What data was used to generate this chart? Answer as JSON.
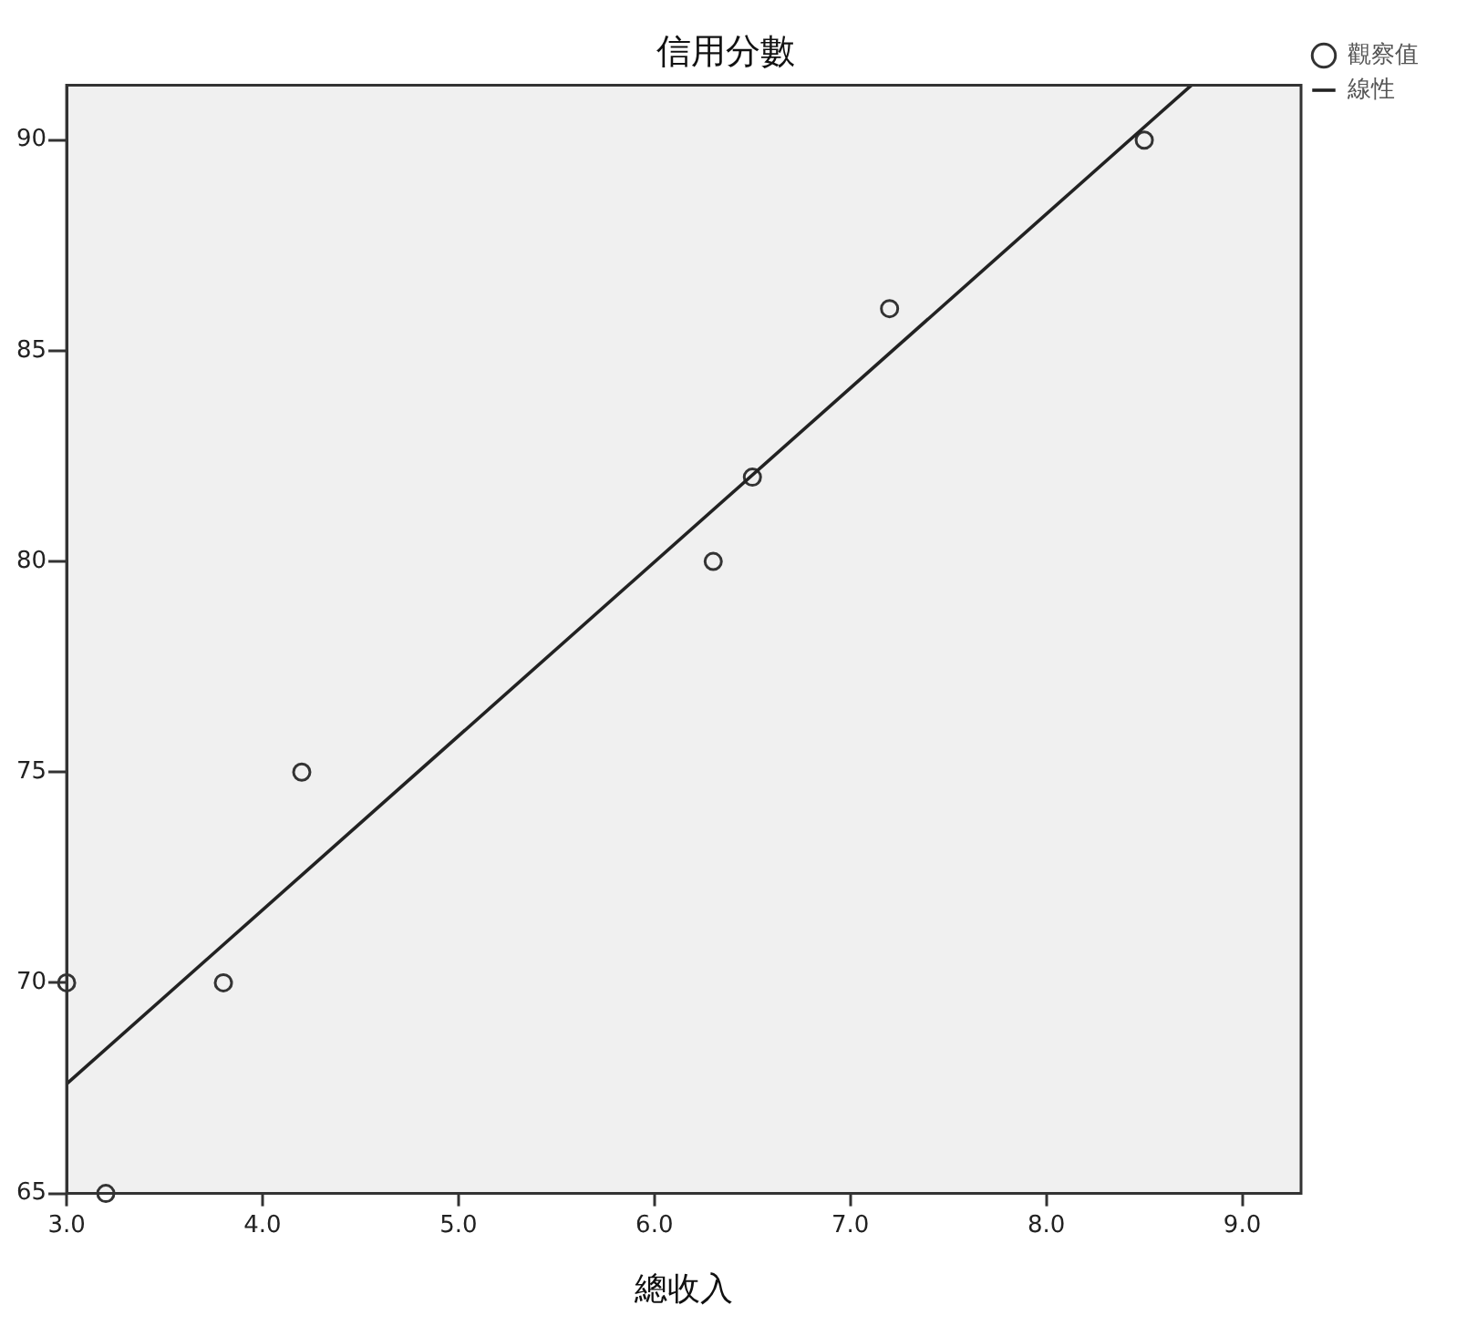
{
  "chart_data": {
    "type": "scatter",
    "title": "信用分數",
    "xlabel": "總收入",
    "xlim": [
      3.0,
      9.3
    ],
    "xticks": [
      {
        "value": 3,
        "label": "3.0"
      },
      {
        "value": 4,
        "label": "4.0"
      },
      {
        "value": 5,
        "label": "5.0"
      },
      {
        "value": 6,
        "label": "6.0"
      },
      {
        "value": 7,
        "label": "7.0"
      },
      {
        "value": 8,
        "label": "8.0"
      },
      {
        "value": 9,
        "label": "9.0"
      }
    ],
    "ylim": [
      65,
      91.3
    ],
    "yticks": [
      65,
      70,
      75,
      80,
      85,
      90
    ],
    "grid": false,
    "legend": "top right",
    "marker": "circle",
    "series": [
      {
        "name": "觀察值",
        "type": "scatter",
        "color": "#333333",
        "x": [
          3.0,
          3.2,
          3.8,
          4.2,
          6.3,
          6.5,
          7.2,
          8.5
        ],
        "values": [
          70,
          65,
          70,
          75,
          80,
          82,
          86,
          90
        ]
      },
      {
        "name": "線性",
        "type": "line",
        "color": "#222222",
        "line_style": "solid",
        "marker": "none",
        "x": [
          3.0,
          8.74
        ],
        "values": [
          67.6,
          91.3
        ]
      }
    ]
  }
}
